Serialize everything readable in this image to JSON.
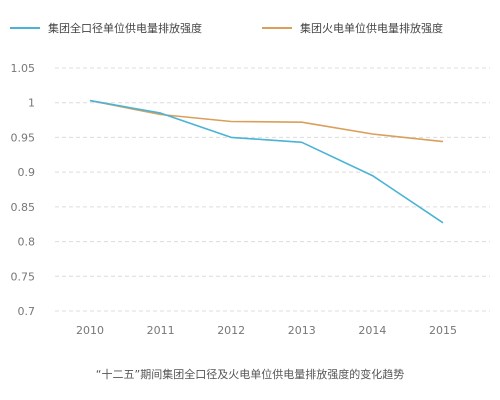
{
  "chart_data": {
    "type": "line",
    "title": "",
    "xlabel": "",
    "ylabel": "",
    "categories": [
      "2010",
      "2011",
      "2012",
      "2013",
      "2014",
      "2015"
    ],
    "ylim": [
      0.7,
      1.05
    ],
    "yticks": [
      "1.05",
      "1",
      "0.95",
      "0.9",
      "0.85",
      "0.8",
      "0.75",
      "0.7"
    ],
    "grid": true,
    "legend_position": "top",
    "series": [
      {
        "name": "集团全口径单位供电量排放强度",
        "color": "#4bb3d4",
        "values": [
          1.003,
          0.985,
          0.95,
          0.943,
          0.895,
          0.827
        ]
      },
      {
        "name": "集团火电单位供电量排放强度",
        "color": "#d9a05b",
        "values": [
          1.003,
          0.983,
          0.973,
          0.972,
          0.955,
          0.944
        ]
      }
    ],
    "caption": "“十二五”期间集团全口径及火电单位供电量排放强度的变化趋势"
  }
}
